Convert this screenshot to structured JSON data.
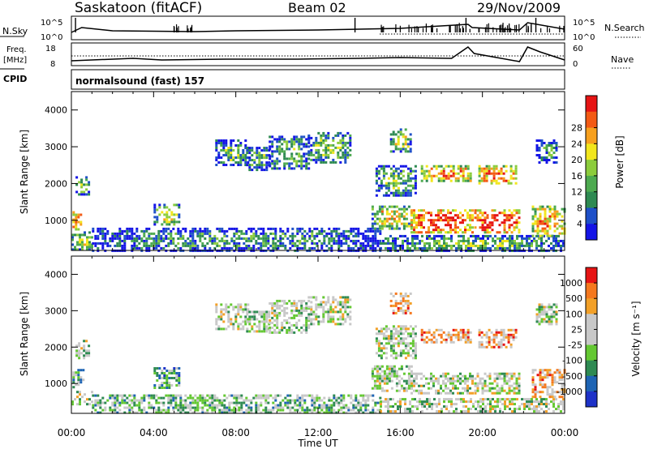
{
  "header": {
    "station": "Saskatoon (fitACF)",
    "beam": "Beam 02",
    "date": "29/Nov/2009"
  },
  "status_panels": {
    "nsky_label": "N.Sky",
    "nsky_ticks": [
      "10^5",
      "10^0"
    ],
    "nsearch_label": "N.Search",
    "nsearch_ticks": [
      "10^5",
      "10^0"
    ],
    "freq_label_1": "Freq.",
    "freq_label_2": "[MHz]",
    "freq_ticks": [
      "18",
      "8"
    ],
    "nave_label": "Nave",
    "nave_ticks": [
      "60",
      "0"
    ],
    "cpid_label": "CPID",
    "cpid_value": "normalsound (fast) 157"
  },
  "colors": {
    "power_scale": [
      "#1414e6",
      "#1e50c8",
      "#2e8a52",
      "#4daa50",
      "#8ccc3c",
      "#f2e61c",
      "#f7a01e",
      "#f35a14",
      "#e61414"
    ],
    "velocity_scale": [
      "#1e32c8",
      "#1e64b4",
      "#2e8a52",
      "#64c832",
      "#c8c8c8",
      "#c8c8c8",
      "#f2a028",
      "#f5781e",
      "#e61414"
    ]
  },
  "chart_data": [
    {
      "type": "heatmap",
      "title": "Power",
      "xlabel": "Time UT",
      "ylabel": "Slant Range [km]",
      "x_ticks": [
        "00:00",
        "04:00",
        "08:00",
        "12:00",
        "16:00",
        "20:00",
        "00:00"
      ],
      "y_ticks": [
        1000,
        2000,
        3000,
        4000
      ],
      "ylim": [
        180,
        4500
      ],
      "colorbar": {
        "label": "Power [dB]",
        "ticks": [
          "4",
          "8",
          "12",
          "16",
          "20",
          "24",
          "28"
        ],
        "range": [
          0,
          30
        ]
      },
      "regions": [
        {
          "t0": 0.0,
          "t1": 1.0,
          "r0": 200,
          "r1": 700,
          "level": 0.5
        },
        {
          "t0": 1.0,
          "t1": 15.0,
          "r0": 200,
          "r1": 800,
          "level": 0.3
        },
        {
          "t0": 15.0,
          "t1": 24.0,
          "r0": 200,
          "r1": 600,
          "level": 0.4
        },
        {
          "t0": 0.05,
          "t1": 0.5,
          "r0": 750,
          "r1": 1250,
          "level": 0.9
        },
        {
          "t0": 0.2,
          "t1": 0.8,
          "r0": 1700,
          "r1": 2200,
          "level": 0.4
        },
        {
          "t0": 4.0,
          "t1": 5.2,
          "r0": 900,
          "r1": 1450,
          "level": 0.55
        },
        {
          "t0": 7.0,
          "t1": 8.6,
          "r0": 2500,
          "r1": 3200,
          "level": 0.35
        },
        {
          "t0": 8.5,
          "t1": 9.6,
          "r0": 2400,
          "r1": 3000,
          "level": 0.35
        },
        {
          "t0": 9.6,
          "t1": 11.5,
          "r0": 2400,
          "r1": 3300,
          "level": 0.4
        },
        {
          "t0": 11.5,
          "t1": 13.6,
          "r0": 2600,
          "r1": 3400,
          "level": 0.45
        },
        {
          "t0": 14.6,
          "t1": 16.5,
          "r0": 800,
          "r1": 1400,
          "level": 0.6
        },
        {
          "t0": 14.8,
          "t1": 16.8,
          "r0": 1700,
          "r1": 2500,
          "level": 0.4
        },
        {
          "t0": 15.5,
          "t1": 16.5,
          "r0": 2900,
          "r1": 3500,
          "level": 0.5
        },
        {
          "t0": 16.5,
          "t1": 19.5,
          "r0": 700,
          "r1": 1300,
          "level": 0.95
        },
        {
          "t0": 17.0,
          "t1": 19.4,
          "r0": 2100,
          "r1": 2500,
          "level": 0.75
        },
        {
          "t0": 19.6,
          "t1": 21.8,
          "r0": 700,
          "r1": 1300,
          "level": 0.95
        },
        {
          "t0": 19.8,
          "t1": 21.6,
          "r0": 2000,
          "r1": 2500,
          "level": 0.8
        },
        {
          "t0": 22.4,
          "t1": 24.0,
          "r0": 600,
          "r1": 1400,
          "level": 0.75
        },
        {
          "t0": 22.6,
          "t1": 23.6,
          "r0": 2600,
          "r1": 3200,
          "level": 0.3
        }
      ]
    },
    {
      "type": "heatmap",
      "title": "Velocity",
      "xlabel": "Time UT",
      "ylabel": "Slant Range [km]",
      "x_ticks": [
        "00:00",
        "04:00",
        "08:00",
        "12:00",
        "16:00",
        "20:00",
        "00:00"
      ],
      "y_ticks": [
        1000,
        2000,
        3000,
        4000
      ],
      "ylim": [
        180,
        4500
      ],
      "colorbar": {
        "label": "Velocity [m s⁻¹]",
        "ticks": [
          "1000",
          "500",
          "100",
          "25",
          "-25",
          "-100",
          "-500",
          "-1000"
        ],
        "range": [
          -1000,
          1000
        ]
      },
      "regions": [
        {
          "t0": 0.0,
          "t1": 1.0,
          "r0": 400,
          "r1": 800,
          "level": 0.5
        },
        {
          "t0": 1.0,
          "t1": 15.0,
          "r0": 200,
          "r1": 700,
          "level": 0.4
        },
        {
          "t0": 15.0,
          "t1": 24.0,
          "r0": 200,
          "r1": 600,
          "level": 0.5
        },
        {
          "t0": 0.05,
          "t1": 0.6,
          "r0": 900,
          "r1": 1400,
          "level": 0.35
        },
        {
          "t0": 0.2,
          "t1": 0.8,
          "r0": 1700,
          "r1": 2200,
          "level": 0.5
        },
        {
          "t0": 4.0,
          "t1": 5.2,
          "r0": 900,
          "r1": 1450,
          "level": 0.3
        },
        {
          "t0": 7.0,
          "t1": 8.6,
          "r0": 2500,
          "r1": 3200,
          "level": 0.5
        },
        {
          "t0": 8.5,
          "t1": 9.6,
          "r0": 2400,
          "r1": 3000,
          "level": 0.5
        },
        {
          "t0": 9.6,
          "t1": 11.5,
          "r0": 2400,
          "r1": 3300,
          "level": 0.5
        },
        {
          "t0": 11.5,
          "t1": 13.6,
          "r0": 2600,
          "r1": 3400,
          "level": 0.5
        },
        {
          "t0": 14.6,
          "t1": 16.5,
          "r0": 800,
          "r1": 1500,
          "level": 0.5
        },
        {
          "t0": 14.8,
          "t1": 16.8,
          "r0": 1700,
          "r1": 2600,
          "level": 0.5
        },
        {
          "t0": 15.5,
          "t1": 16.5,
          "r0": 2900,
          "r1": 3500,
          "level": 0.72
        },
        {
          "t0": 16.5,
          "t1": 19.5,
          "r0": 700,
          "r1": 1300,
          "level": 0.5
        },
        {
          "t0": 17.0,
          "t1": 19.4,
          "r0": 2100,
          "r1": 2500,
          "level": 0.72
        },
        {
          "t0": 19.6,
          "t1": 21.8,
          "r0": 700,
          "r1": 1300,
          "level": 0.5
        },
        {
          "t0": 19.8,
          "t1": 21.6,
          "r0": 2000,
          "r1": 2500,
          "level": 0.72
        },
        {
          "t0": 22.4,
          "t1": 24.0,
          "r0": 600,
          "r1": 1400,
          "level": 0.7
        },
        {
          "t0": 22.6,
          "t1": 23.6,
          "r0": 2600,
          "r1": 3200,
          "level": 0.5
        }
      ]
    }
  ]
}
